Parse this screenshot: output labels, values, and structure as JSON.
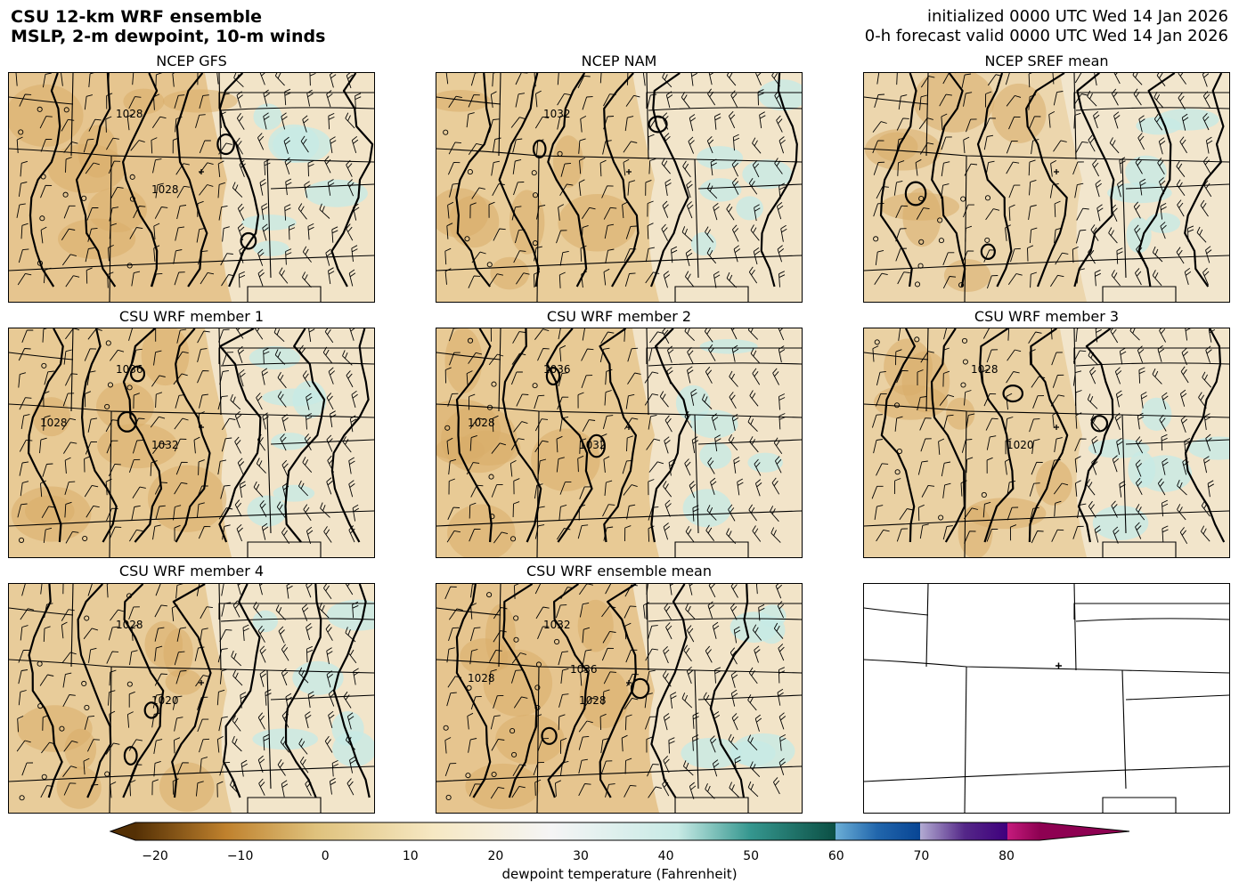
{
  "header": {
    "line1": "CSU 12-km WRF ensemble",
    "line2": "MSLP, 2-m dewpoint, 10-m winds",
    "init": "initialized 0000 UTC Wed 14 Jan 2026",
    "valid": "0-h forecast valid 0000 UTC Wed 14 Jan 2026"
  },
  "panels": [
    {
      "title": "NCEP GFS",
      "labels": [
        "1028",
        "1028"
      ],
      "bg": "#e6c58f"
    },
    {
      "title": "NCEP NAM",
      "labels": [
        "1032"
      ],
      "bg": "#e9cd9a"
    },
    {
      "title": "NCEP SREF mean",
      "labels": [],
      "bg": "#ecd6ad"
    },
    {
      "title": "CSU WRF member 1",
      "labels": [
        "1036",
        "1032",
        "1028"
      ],
      "bg": "#e8ca95"
    },
    {
      "title": "CSU WRF member 2",
      "labels": [
        "1036",
        "1032",
        "1028"
      ],
      "bg": "#e8ca95"
    },
    {
      "title": "CSU WRF member 3",
      "labels": [
        "1028",
        "1020"
      ],
      "bg": "#ead1a3"
    },
    {
      "title": "CSU WRF member 4",
      "labels": [
        "1028",
        "1020"
      ],
      "bg": "#e8cc9a"
    },
    {
      "title": "CSU WRF ensemble mean",
      "labels": [
        "1032",
        "1028",
        "1028",
        "1036"
      ],
      "bg": "#e6c58f"
    },
    {
      "title": "",
      "labels": [],
      "bg": "#ffffff"
    }
  ],
  "colorbar": {
    "label": "dewpoint temperature (Fahrenheit)",
    "ticks": [
      "−20",
      "−10",
      "0",
      "10",
      "20",
      "30",
      "40",
      "50",
      "60",
      "70",
      "80"
    ],
    "range": [
      -20,
      90
    ],
    "colors": {
      "brown_dark": "#543005",
      "brown": "#bf812d",
      "tan": "#dfc27d",
      "cream": "#f6e8c3",
      "white": "#f5f5f5",
      "teal_light": "#c7eae5",
      "teal": "#35978f",
      "teal_dark": "#003c30",
      "blue": "#2166ac",
      "purple": "#542788",
      "magenta": "#8e0152"
    }
  }
}
